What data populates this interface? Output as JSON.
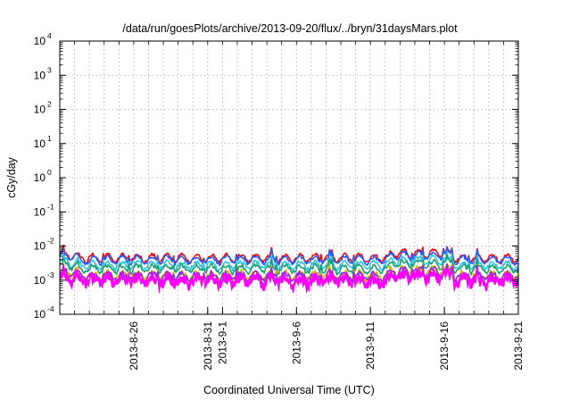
{
  "chart_data": {
    "type": "line",
    "title": "/data/run/goesPlots/archive/2013-09-20/flux/../bryn/31daysMars.plot",
    "xlabel": "Coordinated Universal Time (UTC)",
    "ylabel": "cGy/day",
    "yscale": "log",
    "ylim": [
      0.0001,
      10000
    ],
    "xlim": [
      "2013-08-21",
      "2013-09-21"
    ],
    "grid": true,
    "y_ticks": [
      {
        "value": 0.0001,
        "base": "10",
        "exp": "-4"
      },
      {
        "value": 0.001,
        "base": "10",
        "exp": "-3"
      },
      {
        "value": 0.01,
        "base": "10",
        "exp": "-2"
      },
      {
        "value": 0.1,
        "base": "10",
        "exp": "-1"
      },
      {
        "value": 1,
        "base": "10",
        "exp": "0"
      },
      {
        "value": 10,
        "base": "10",
        "exp": "1"
      },
      {
        "value": 100,
        "base": "10",
        "exp": "2"
      },
      {
        "value": 1000,
        "base": "10",
        "exp": "3"
      },
      {
        "value": 10000,
        "base": "10",
        "exp": "4"
      }
    ],
    "x_ticks": [
      {
        "value": "2013-08-26",
        "label": "2013-8-26"
      },
      {
        "value": "2013-08-31",
        "label": "2013-8-31"
      },
      {
        "value": "2013-09-01",
        "label": "2013-9-1"
      },
      {
        "value": "2013-09-06",
        "label": "2013-9-6"
      },
      {
        "value": "2013-09-11",
        "label": "2013-9-11"
      },
      {
        "value": "2013-09-16",
        "label": "2013-9-16"
      },
      {
        "value": "2013-09-21",
        "label": "2013-9-21"
      }
    ],
    "series": [
      {
        "color": "#ff0000",
        "base": 0.0045,
        "noise": 0.12,
        "fill": false
      },
      {
        "color": "#1f5fff",
        "base": 0.004,
        "noise": 0.12,
        "fill": false
      },
      {
        "color": "#2ec4e0",
        "base": 0.0028,
        "noise": 0.14,
        "fill": false
      },
      {
        "color": "#1aa070",
        "base": 0.0022,
        "noise": 0.15,
        "fill": false
      },
      {
        "color": "#d4b000",
        "base": 0.0014,
        "noise": 0.18,
        "fill": false
      },
      {
        "color": "#8a2be2",
        "base": 0.0013,
        "noise": 0.18,
        "fill": false
      },
      {
        "color": "#ff00ff",
        "base": 0.0012,
        "noise": 0.22,
        "fill": true
      }
    ]
  }
}
